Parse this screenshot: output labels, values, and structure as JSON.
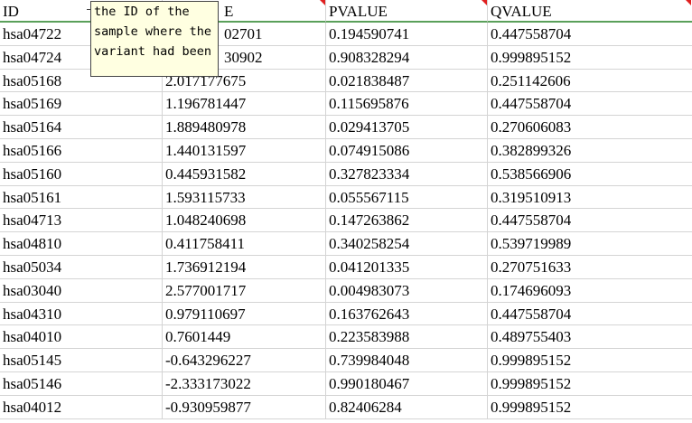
{
  "headers": [
    "ID",
    "E",
    "PVALUE",
    "QVALUE"
  ],
  "comment": "the ID of the\nsample where the\nvariant had been",
  "rows": [
    [
      "hsa04722",
      "02701",
      "0.194590741",
      "0.447558704"
    ],
    [
      "hsa04724",
      "30902",
      "0.908328294",
      "0.999895152"
    ],
    [
      "hsa05168",
      "2.017177675",
      "0.021838487",
      "0.251142606"
    ],
    [
      "hsa05169",
      "1.196781447",
      "0.115695876",
      "0.447558704"
    ],
    [
      "hsa05164",
      "1.889480978",
      "0.029413705",
      "0.270606083"
    ],
    [
      "hsa05166",
      "1.440131597",
      "0.074915086",
      "0.382899326"
    ],
    [
      "hsa05160",
      "0.445931582",
      "0.327823334",
      "0.538566906"
    ],
    [
      "hsa05161",
      "1.593115733",
      "0.055567115",
      "0.319510913"
    ],
    [
      "hsa04713",
      "1.048240698",
      "0.147263862",
      "0.447558704"
    ],
    [
      "hsa04810",
      "0.411758411",
      "0.340258254",
      "0.539719989"
    ],
    [
      "hsa05034",
      "1.736912194",
      "0.041201335",
      "0.270751633"
    ],
    [
      "hsa03040",
      "2.577001717",
      "0.004983073",
      "0.174696093"
    ],
    [
      "hsa04310",
      "0.979110697",
      "0.163762643",
      "0.447558704"
    ],
    [
      "hsa04010",
      "0.7601449",
      "0.223583988",
      "0.489755403"
    ],
    [
      "hsa05145",
      "-0.643296227",
      "0.739984048",
      "0.999895152"
    ],
    [
      "hsa05146",
      "-2.333173022",
      "0.990180467",
      "0.999895152"
    ],
    [
      "hsa04012",
      "-0.930959877",
      "0.82406284",
      "0.999895152"
    ]
  ]
}
